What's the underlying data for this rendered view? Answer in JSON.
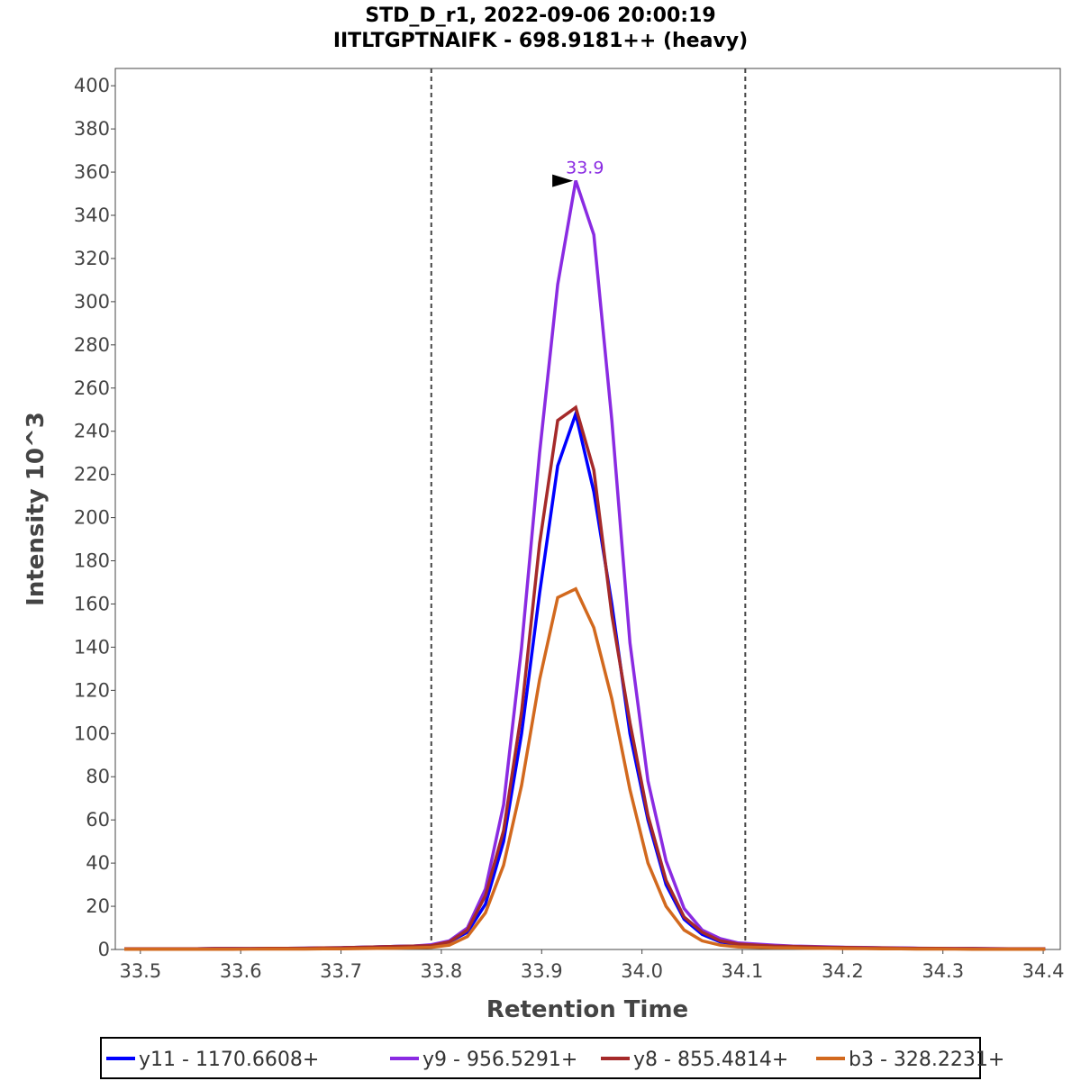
{
  "chart_data": {
    "type": "line",
    "title": "STD_D_r1, 2022-09-06 20:00:19",
    "subtitle": "IITLTGPTNAIFK - 698.9181++ (heavy)",
    "xlabel": "Retention Time",
    "ylabel": "Intensity 10^3",
    "xlim": [
      33.475,
      34.417
    ],
    "ylim": [
      0,
      408
    ],
    "xticks": [
      "33.5",
      "33.6",
      "33.7",
      "33.8",
      "33.9",
      "34.0",
      "34.1",
      "34.2",
      "34.3",
      "34.4"
    ],
    "xtick_values": [
      33.5,
      33.6,
      33.7,
      33.8,
      33.9,
      34.0,
      34.1,
      34.2,
      34.3,
      34.4
    ],
    "yticks": [
      0,
      20,
      40,
      60,
      80,
      100,
      120,
      140,
      160,
      180,
      200,
      220,
      240,
      260,
      280,
      300,
      320,
      340,
      360,
      380,
      400
    ],
    "grid": false,
    "legend_position": "bottom",
    "boundaries": [
      33.79,
      34.103
    ],
    "peak_annotation": {
      "label": "33.9",
      "x": 33.934,
      "y": 356,
      "color": "#8a2be2"
    },
    "x_start": 33.484,
    "x_step": 0.018,
    "series": [
      {
        "name": "y11 - 1170.6608+",
        "color": "#0000ff",
        "values": [
          0.3,
          0.3,
          0.3,
          0.3,
          0.3,
          0.4,
          0.4,
          0.4,
          0.5,
          0.5,
          0.6,
          0.7,
          0.8,
          1.0,
          1.2,
          1.4,
          1.6,
          1.8,
          3.5,
          8,
          21,
          50,
          100,
          165,
          224,
          248,
          212,
          160,
          100,
          60,
          30,
          14,
          7,
          3.5,
          2.2,
          1.8,
          1.5,
          1.3,
          1.1,
          1.0,
          0.9,
          0.8,
          0.7,
          0.6,
          0.5,
          0.5,
          0.4,
          0.4,
          0.3,
          0.3,
          0.3,
          0.3
        ]
      },
      {
        "name": "y9 - 956.5291+",
        "color": "#8a2be2",
        "values": [
          0.3,
          0.3,
          0.3,
          0.3,
          0.3,
          0.4,
          0.4,
          0.4,
          0.5,
          0.5,
          0.6,
          0.7,
          0.8,
          1.0,
          1.2,
          1.4,
          1.6,
          2.2,
          4,
          10,
          28,
          67,
          140,
          230,
          308,
          356,
          331,
          245,
          142,
          78,
          41,
          19,
          9,
          5,
          3,
          2.5,
          2,
          1.6,
          1.4,
          1.2,
          1.0,
          0.9,
          0.8,
          0.7,
          0.6,
          0.5,
          0.5,
          0.4,
          0.4,
          0.3,
          0.3,
          0.3
        ]
      },
      {
        "name": "y8 - 855.4814+",
        "color": "#a52a2a",
        "values": [
          0.3,
          0.3,
          0.3,
          0.3,
          0.3,
          0.4,
          0.4,
          0.4,
          0.5,
          0.5,
          0.6,
          0.7,
          0.8,
          1.0,
          1.2,
          1.4,
          1.6,
          1.8,
          3.5,
          9,
          25,
          55,
          110,
          188,
          245,
          251,
          222,
          155,
          105,
          62,
          32,
          15,
          8,
          4,
          2.5,
          2,
          1.6,
          1.4,
          1.2,
          1.0,
          0.9,
          0.8,
          0.7,
          0.6,
          0.5,
          0.5,
          0.4,
          0.4,
          0.3,
          0.3,
          0.3,
          0.3
        ]
      },
      {
        "name": "b3 - 328.2231+",
        "color": "#d2691e",
        "values": [
          0.1,
          0.1,
          0.1,
          0.1,
          0.1,
          0.1,
          0.1,
          0.2,
          0.2,
          0.2,
          0.2,
          0.3,
          0.3,
          0.4,
          0.5,
          0.6,
          0.8,
          1,
          2,
          6,
          17,
          39,
          76,
          125,
          163,
          167,
          149,
          116,
          74,
          40,
          20,
          9,
          4,
          2,
          1.2,
          1,
          0.8,
          0.7,
          0.6,
          0.5,
          0.4,
          0.4,
          0.3,
          0.3,
          0.2,
          0.2,
          0.2,
          0.1,
          0.1,
          0.1,
          0.1,
          0.1
        ]
      }
    ]
  }
}
